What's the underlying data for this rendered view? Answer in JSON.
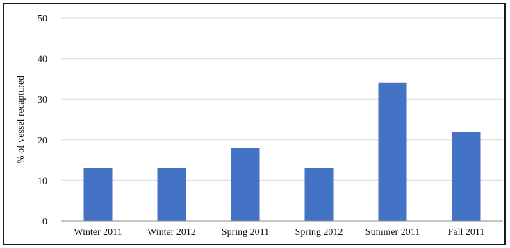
{
  "chart_data": {
    "type": "bar",
    "title": "",
    "xlabel": "",
    "ylabel": "% of vessel recaptured",
    "categories": [
      "Winter 2011",
      "Winter 2012",
      "Spring 2011",
      "Spring 2012",
      "Summer 2011",
      "Fall 2011"
    ],
    "values": [
      13,
      13,
      18,
      13,
      34,
      22
    ],
    "ylim": [
      0,
      50
    ],
    "yticks": [
      0,
      10,
      20,
      30,
      40,
      50
    ],
    "grid": "horizontal",
    "legend": "none",
    "bar_color": "#4472c4",
    "grid_color": "#d9d9d9",
    "axis_color": "#8c8c8c"
  }
}
